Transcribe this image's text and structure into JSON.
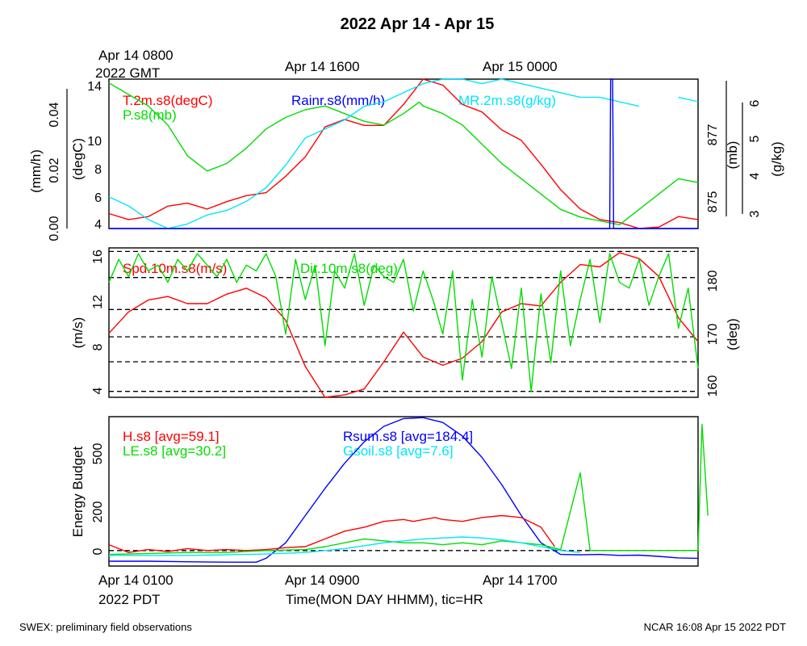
{
  "chart_data": {
    "title": "2022 Apr 14 - Apr 15",
    "footer_left": "SWEX: preliminary field observations",
    "footer_right": "NCAR 16:08 Apr 15 2022 PDT",
    "xlabel": "Time(MON DAY HHMM), tic=HR",
    "top_time_labels": {
      "gmt_line1": "Apr 14 0800",
      "gmt_line2": "2022 GMT",
      "mid1": "Apr 14 1600",
      "mid2": "Apr 15 0000"
    },
    "bottom_time_labels": {
      "pdt_line1": "Apr 14 0100",
      "pdt_line2": "2022 PDT",
      "mid1": "Apr 14 0900",
      "mid2": "Apr 14 1700"
    },
    "colors": {
      "red": "#ff0000",
      "green": "#00dd00",
      "blue": "#0000ff",
      "cyan": "#00e5ff"
    },
    "panels": [
      {
        "type": "line",
        "legend": {
          "t": "T.2m.s8(degC)",
          "p": "P.s8(mb)",
          "rain": "Rainr.s8(mm/h)",
          "mr": "MR.2m.s8(g/kg)"
        },
        "axes": {
          "rain": {
            "label": "(mm/h)",
            "ticks": [
              "0.00",
              "0.02",
              "0.04"
            ],
            "ylim": [
              0,
              0.05
            ]
          },
          "temp": {
            "label": "(degC)",
            "ticks": [
              "4",
              "6",
              "8",
              "10",
              "14"
            ],
            "ylim": [
              4,
              14
            ]
          },
          "pres": {
            "label": "(mb)",
            "ticks": [
              "875",
              "877"
            ],
            "ylim": [
              874.3,
              878.2
            ]
          },
          "mr": {
            "label": "(g/kg)",
            "ticks": [
              "3",
              "4",
              "5",
              "6"
            ],
            "ylim": [
              3,
              6.3
            ]
          }
        },
        "series": [
          {
            "name": "T.2m.s8(degC)",
            "color": "red",
            "axis": "temp",
            "x": [
              0,
              1,
              2,
              3,
              4,
              5,
              6,
              7,
              8,
              9,
              10,
              11,
              12,
              13,
              14,
              15,
              16,
              17,
              18,
              19,
              20,
              21,
              22,
              23,
              24,
              25,
              26,
              27,
              28,
              29,
              30
            ],
            "y": [
              5.0,
              4.6,
              4.8,
              5.5,
              5.7,
              5.3,
              5.8,
              6.2,
              6.4,
              7.5,
              8.8,
              10.8,
              11.3,
              10.9,
              10.9,
              12.3,
              14.2,
              13.6,
              12.3,
              11.8,
              10.6,
              9.9,
              8.3,
              6.6,
              5.3,
              4.6,
              4.4,
              4.0,
              4.1,
              4.8,
              4.6
            ]
          },
          {
            "name": "P.s8(mb)",
            "color": "green",
            "axis": "pres",
            "x": [
              0,
              1,
              2,
              3,
              4,
              5,
              6,
              7,
              8,
              9,
              10,
              11,
              12,
              13,
              14,
              15,
              15.8,
              16,
              17,
              18,
              19,
              20,
              21,
              22,
              23,
              24,
              25,
              26,
              27,
              28,
              29,
              30
            ],
            "y": [
              878.1,
              877.8,
              877.5,
              877.0,
              876.2,
              875.8,
              876.0,
              876.4,
              876.9,
              877.2,
              877.4,
              877.5,
              877.3,
              877.1,
              877.0,
              877.3,
              877.6,
              877.5,
              877.3,
              877.0,
              876.5,
              876.0,
              875.6,
              875.2,
              874.8,
              874.6,
              874.5,
              874.4,
              874.8,
              875.2,
              875.6,
              875.5
            ]
          },
          {
            "name": "MR.2m.s8(g/kg)",
            "color": "cyan",
            "axis": "mr",
            "x": [
              0,
              1,
              2,
              3,
              4,
              5,
              6,
              7,
              8,
              9,
              10,
              11,
              12,
              13,
              14,
              15,
              16,
              17,
              18,
              19,
              20,
              21,
              22,
              23,
              24,
              25,
              26,
              27,
              28,
              29,
              30
            ],
            "y": [
              3.7,
              3.5,
              3.2,
              3.0,
              3.1,
              3.3,
              3.4,
              3.6,
              3.9,
              4.4,
              5.0,
              5.2,
              5.4,
              5.7,
              5.8,
              6.0,
              6.2,
              6.4,
              6.3,
              6.2,
              6.3,
              6.2,
              6.1,
              6.0,
              5.9,
              5.9,
              5.8,
              5.7,
              null,
              5.9,
              5.8
            ]
          },
          {
            "name": "Rainr.s8(mm/h)",
            "color": "blue",
            "axis": "rain",
            "x": [
              0,
              25.5,
              25.55,
              25.65,
              25.7,
              30
            ],
            "y": [
              0,
              0,
              0.05,
              0.05,
              0,
              0
            ]
          }
        ]
      },
      {
        "type": "line",
        "legend": {
          "spd": "Spd.10m.s8(m/s)",
          "dir": "Dir.10m.s8(deg)"
        },
        "axes": {
          "spd": {
            "label": "(m/s)",
            "ticks": [
              "4",
              "8",
              "12",
              "16"
            ],
            "ylim": [
              3.8,
              16.4
            ]
          },
          "dir": {
            "label": "(deg)",
            "ticks": [
              "160",
              "170",
              "180"
            ],
            "ylim": [
              159,
              185
            ]
          }
        },
        "gridlines_spd": [
          4.3,
          6.8,
          8.9,
          11.2,
          13.9,
          16.1
        ],
        "series": [
          {
            "name": "Spd.10m.s8(m/s)",
            "color": "red",
            "axis": "spd",
            "x": [
              0,
              1,
              2,
              3,
              4,
              5,
              6,
              7,
              8,
              9,
              10,
              11,
              12,
              13,
              14,
              15,
              16,
              17,
              18,
              19,
              20,
              21,
              22,
              23,
              24,
              25,
              26,
              27,
              28,
              29,
              30
            ],
            "y": [
              9.2,
              11.0,
              12.0,
              12.3,
              11.7,
              11.7,
              12.5,
              13.0,
              12.2,
              10.3,
              6.4,
              3.8,
              4.0,
              4.5,
              6.8,
              9.3,
              7.2,
              6.5,
              7.1,
              8.5,
              11.0,
              11.7,
              11.5,
              13.5,
              15.0,
              14.8,
              16.0,
              15.5,
              14.0,
              10.5,
              8.5
            ]
          },
          {
            "name": "Dir.10m.s8(deg)",
            "color": "green",
            "axis": "dir",
            "x": [
              0,
              0.5,
              1,
              1.5,
              2,
              2.5,
              3,
              3.5,
              4,
              4.5,
              5,
              5.5,
              6,
              6.5,
              7,
              7.5,
              8,
              8.5,
              9,
              9.5,
              10,
              10.5,
              11,
              11.5,
              12,
              12.5,
              13,
              13.5,
              14,
              14.5,
              15,
              15.5,
              16,
              16.5,
              17,
              17.5,
              18,
              18.5,
              19,
              19.5,
              20,
              20.5,
              21,
              21.5,
              22,
              22.5,
              23,
              23.5,
              24,
              24.5,
              25,
              25.5,
              26,
              26.5,
              27,
              27.5,
              28,
              28.5,
              29,
              29.5,
              30
            ],
            "y": [
              179,
              183,
              180,
              184,
              181,
              182,
              179,
              183,
              181,
              184,
              182,
              180,
              183,
              179,
              182,
              181,
              184,
              180,
              170,
              183,
              176,
              182,
              168,
              181,
              178,
              184,
              175,
              182,
              180,
              179,
              183,
              174,
              181,
              176,
              170,
              181,
              162,
              176,
              166,
              180,
              172,
              164,
              178,
              160,
              177,
              165,
              181,
              168,
              176,
              183,
              172,
              184,
              179,
              178,
              183,
              175,
              180,
              184,
              171,
              178,
              164
            ]
          }
        ]
      },
      {
        "type": "line",
        "legend": {
          "h": "H.s8 [avg=59.1]",
          "le": "LE.s8 [avg=30.2]",
          "rsum": "Rsum.s8 [avg=184.4]",
          "gsoil": "Gsoil.s8 [avg=7.6]"
        },
        "axes": {
          "energy": {
            "label": "Energy Budget",
            "ticks": [
              "0",
              "200",
              "500"
            ],
            "ylim": [
              -80,
              690
            ]
          }
        },
        "zero_line": 0,
        "series": [
          {
            "name": "Rsum.s8 [avg=184.4]",
            "color": "blue",
            "axis": "energy",
            "x": [
              0,
              2,
              4,
              6,
              7.5,
              8,
              9,
              10,
              11,
              12,
              13,
              14,
              15,
              16,
              17,
              18,
              19,
              20,
              21,
              22,
              23,
              24,
              25,
              26,
              27,
              28,
              29,
              30
            ],
            "y": [
              -55,
              -55,
              -58,
              -60,
              -60,
              -40,
              40,
              180,
              320,
              450,
              560,
              640,
              680,
              685,
              660,
              590,
              480,
              340,
              180,
              40,
              -20,
              -22,
              -20,
              -25,
              -24,
              -30,
              -38,
              -40
            ]
          },
          {
            "name": "H.s8 [avg=59.1]",
            "color": "red",
            "axis": "energy",
            "x": [
              0,
              0.5,
              1,
              2,
              3,
              4,
              5,
              6,
              7,
              8,
              9,
              10,
              11,
              12,
              13,
              14,
              15,
              15.5,
              16.6,
              17,
              18,
              19,
              20,
              21,
              22,
              22.7
            ],
            "y": [
              30,
              10,
              -10,
              5,
              -5,
              10,
              0,
              5,
              0,
              5,
              15,
              20,
              60,
              100,
              120,
              150,
              160,
              150,
              170,
              160,
              150,
              170,
              180,
              170,
              120,
              20
            ]
          },
          {
            "name": "LE.s8 [avg=30.2]",
            "color": "green",
            "axis": "energy",
            "x": [
              0,
              2,
              4,
              6,
              8,
              10,
              11,
              12,
              13,
              14,
              15,
              16,
              17,
              18,
              19,
              20,
              21,
              22,
              23,
              24,
              24.5,
              30,
              30.2,
              30.5
            ],
            "y": [
              -20,
              -15,
              -10,
              -10,
              0,
              5,
              20,
              40,
              60,
              50,
              40,
              40,
              30,
              40,
              30,
              50,
              40,
              30,
              5,
              400,
              0,
              0,
              650,
              180
            ]
          },
          {
            "name": "Gsoil.s8 [avg=7.6]",
            "color": "cyan",
            "axis": "energy",
            "x": [
              0,
              2,
              4,
              6,
              8,
              10,
              12,
              14,
              16,
              18,
              19,
              20,
              21,
              22,
              23,
              24
            ],
            "y": [
              -25,
              -25,
              -25,
              -22,
              -18,
              -10,
              10,
              40,
              60,
              70,
              65,
              55,
              40,
              20,
              0,
              -10
            ]
          }
        ]
      }
    ]
  }
}
